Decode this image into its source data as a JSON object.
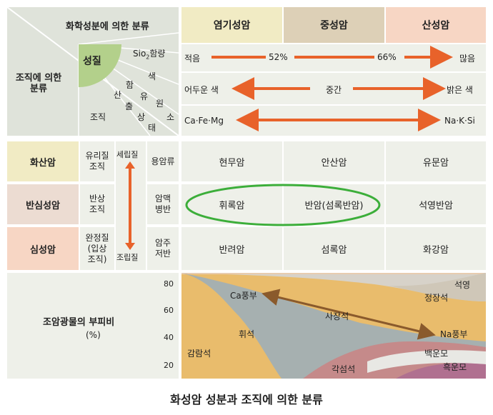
{
  "header": {
    "classification_by_composition": "화학성분에 의한 분류",
    "classification_by_texture": "조직에 의한\n분류",
    "composition_corner": "성질",
    "silica_content_prefix": "Sio",
    "silica_content_subscript": "2",
    "silica_content_suffix": "함량",
    "properties_chars": [
      "색",
      "원",
      "소"
    ],
    "yield_chars": [
      "산",
      "출",
      "상",
      "태"
    ],
    "composition_chars": [
      "함",
      "유"
    ],
    "texture_corner": "조직",
    "columns": [
      "염기성암",
      "중성암",
      "산성암"
    ],
    "column_colors": [
      "#f1ebc4",
      "#ddd0b7",
      "#f7d6c4"
    ]
  },
  "property_rows": {
    "silica": {
      "left": "적음",
      "mark1": "52%",
      "mark2": "66%",
      "right": "많음"
    },
    "color": {
      "left": "어두운 색",
      "middle": "중간",
      "right": "밝은 색"
    },
    "elements": {
      "left": "Ca·Fe·Mg",
      "right": "Na·K·Si"
    }
  },
  "rows": [
    {
      "name": "화산암",
      "texture": "유리질\n조직",
      "occurrence": "용암류",
      "rocks": [
        "현무암",
        "안산암",
        "유문암"
      ],
      "color": "#f1ebc4"
    },
    {
      "name": "반심성암",
      "texture": "반상\n조직",
      "occurrence": "암맥\n병반",
      "rocks": [
        "휘록암",
        "반암(섬록반암)",
        "석영반암"
      ],
      "color": "#ecdcd2"
    },
    {
      "name": "심성암",
      "texture": "완정질\n(입상\n조직)",
      "occurrence": "암주\n저반",
      "rocks": [
        "반려암",
        "섬록암",
        "화강암"
      ],
      "color": "#f7d6c4"
    }
  ],
  "grain_arrow": {
    "top": "세립질",
    "bottom": "조립질"
  },
  "volume_chart": {
    "label": "조암광물의 부피비",
    "unit": "(%)",
    "ticks": [
      "80",
      "60",
      "40",
      "20"
    ],
    "minerals": [
      "석영",
      "정장석",
      "사장석",
      "Ca풍부",
      "Na풍부",
      "휘석",
      "감람석",
      "백운모",
      "각섬석",
      "흑운모"
    ]
  },
  "caption": "화성암 성분과 조직에 의한 분류",
  "colors": {
    "arrow": "#e8622a",
    "brown_arrow": "#8a5a2c",
    "highlight": "#3cae3a"
  }
}
